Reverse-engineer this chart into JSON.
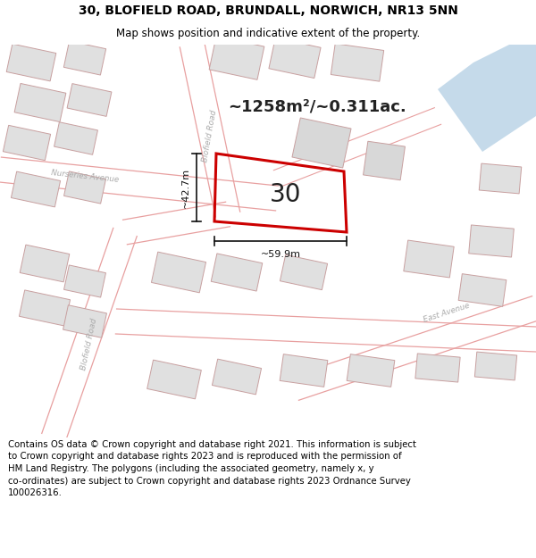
{
  "title_line1": "30, BLOFIELD ROAD, BRUNDALL, NORWICH, NR13 5NN",
  "title_line2": "Map shows position and indicative extent of the property.",
  "area_text": "~1258m²/~0.311ac.",
  "label_42": "~42.7m",
  "label_59": "~59.9m",
  "label_30": "30",
  "road_label_blofield_upper": "Blofield Road",
  "road_label_blofield_lower": "Blofield Road",
  "road_label_nurseries": "Nurseries Avenue",
  "road_label_east": "East Avenue",
  "footer": "Contains OS data © Crown copyright and database right 2021. This information is subject to Crown copyright and database rights 2023 and is reproduced with the permission of HM Land Registry. The polygons (including the associated geometry, namely x, y co-ordinates) are subject to Crown copyright and database rights 2023 Ordnance Survey 100026316.",
  "map_bg": "#ffffff",
  "road_line_color": "#e8a0a0",
  "building_fill": "#e0e0e0",
  "building_edge": "#c8a0a0",
  "prop_edge": "#cc0000",
  "prop_fill_rgba": [
    1.0,
    1.0,
    1.0,
    0.0
  ],
  "water_color": "#c8dce8",
  "footer_bg": "#ffffff",
  "title_bg": "#ffffff",
  "text_dark": "#222222",
  "road_label_color": "#aaaaaa",
  "dim_color": "#111111"
}
